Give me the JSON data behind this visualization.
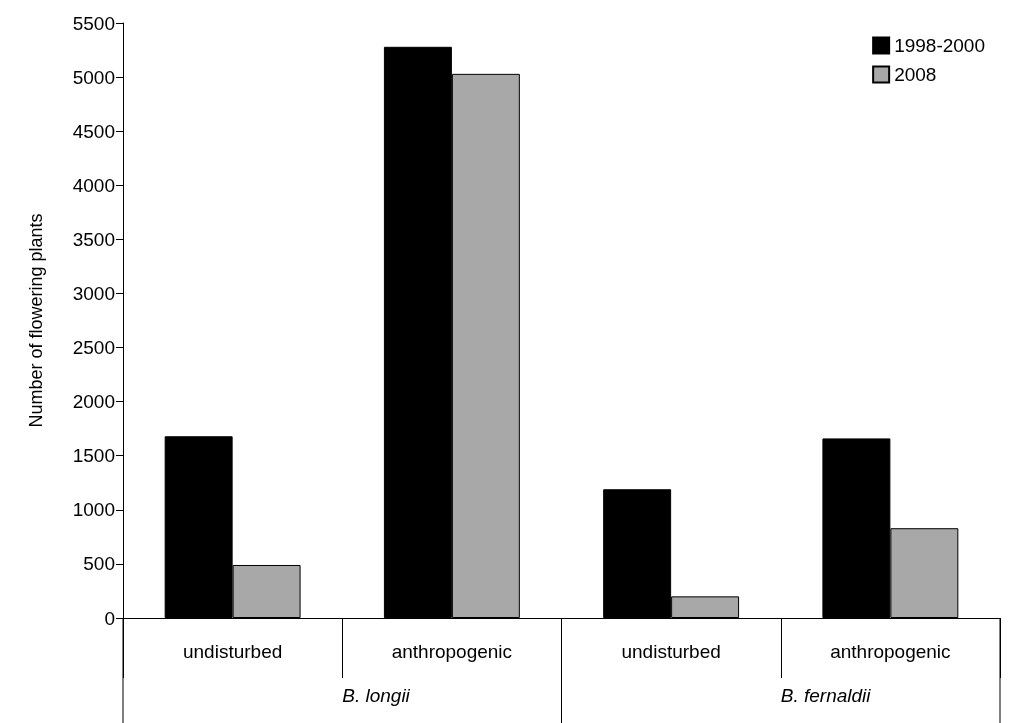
{
  "chart_data": {
    "type": "bar",
    "ylabel": "Number of flowering plants",
    "categories": [
      "undisturbed",
      "anthropogenic",
      "undisturbed",
      "anthropogenic"
    ],
    "annotations": [
      "B. longii",
      "B. fernaldii"
    ],
    "series": [
      {
        "name": "1998-2000",
        "color": "#000000",
        "values": [
          1680,
          5280,
          1190,
          1660
        ]
      },
      {
        "name": "2008",
        "color": "#a8a8a8",
        "values": [
          490,
          5030,
          200,
          830
        ]
      }
    ],
    "ylim": [
      0,
      5500
    ],
    "yticks": [
      0,
      500,
      1000,
      1500,
      2000,
      2500,
      3000,
      3500,
      4000,
      4500,
      5000,
      5500
    ],
    "grid": false,
    "legend": "top right"
  }
}
